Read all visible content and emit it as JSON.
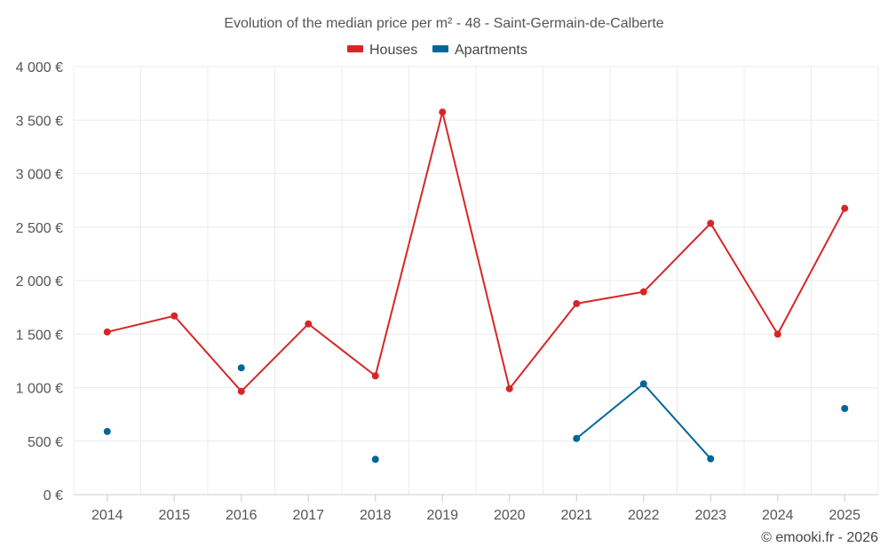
{
  "chart_data": {
    "type": "line",
    "title": "Evolution of the median price per m² - 48 - Saint-Germain-de-Calberte",
    "categories": [
      "2014",
      "2015",
      "2016",
      "2017",
      "2018",
      "2019",
      "2020",
      "2021",
      "2022",
      "2023",
      "2024",
      "2025"
    ],
    "ylim": [
      0,
      4000
    ],
    "yticks": [
      0,
      500,
      1000,
      1500,
      2000,
      2500,
      3000,
      3500,
      4000
    ],
    "ytick_labels": [
      "0 €",
      "500 €",
      "1 000 €",
      "1 500 €",
      "2 000 €",
      "2 500 €",
      "3 000 €",
      "3 500 €",
      "4 000 €"
    ],
    "grid": true,
    "legend_position": "top-center",
    "series": [
      {
        "name": "Houses",
        "color": "#d62728",
        "values": [
          1520,
          1670,
          965,
          1595,
          1110,
          3575,
          990,
          1785,
          1895,
          2535,
          1500,
          2675
        ]
      },
      {
        "name": "Apartments",
        "color": "#006699",
        "values": [
          590,
          null,
          1185,
          null,
          330,
          null,
          null,
          525,
          1035,
          335,
          null,
          805
        ]
      }
    ],
    "credit": "© emooki.fr - 2026"
  }
}
